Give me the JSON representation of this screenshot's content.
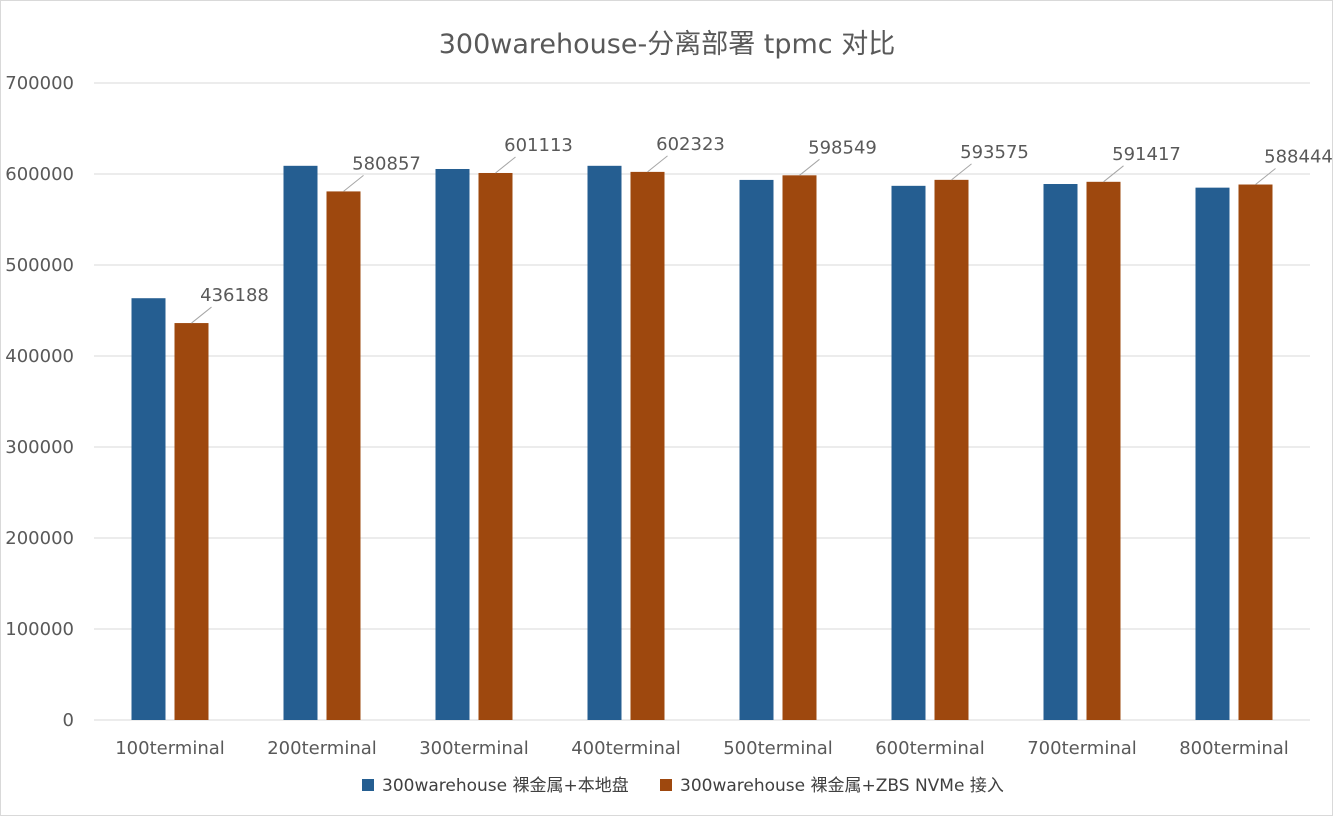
{
  "chart_data": {
    "type": "bar",
    "title": "300warehouse-分离部署 tpmc 对比",
    "categories": [
      "100terminal",
      "200terminal",
      "300terminal",
      "400terminal",
      "500terminal",
      "600terminal",
      "700terminal",
      "800terminal"
    ],
    "series": [
      {
        "name": "300warehouse 裸金属+本地盘",
        "color": "#255e91",
        "values": [
          463500,
          609000,
          605500,
          609000,
          593500,
          587000,
          589000,
          585000
        ]
      },
      {
        "name": "300warehouse 裸金属+ZBS NVMe 接入",
        "color": "#9e480e",
        "values": [
          436188,
          580857,
          601113,
          602323,
          598549,
          593575,
          591417,
          588444
        ],
        "data_labels": [
          "436188",
          "580857",
          "601113",
          "602323",
          "598549",
          "593575",
          "591417",
          "588444"
        ]
      }
    ],
    "ylim": [
      0,
      700000
    ],
    "yticks": [
      "0",
      "100000",
      "200000",
      "300000",
      "400000",
      "500000",
      "600000",
      "700000"
    ],
    "xlabel": "",
    "ylabel": "",
    "grid": true,
    "legend_position": "bottom"
  }
}
